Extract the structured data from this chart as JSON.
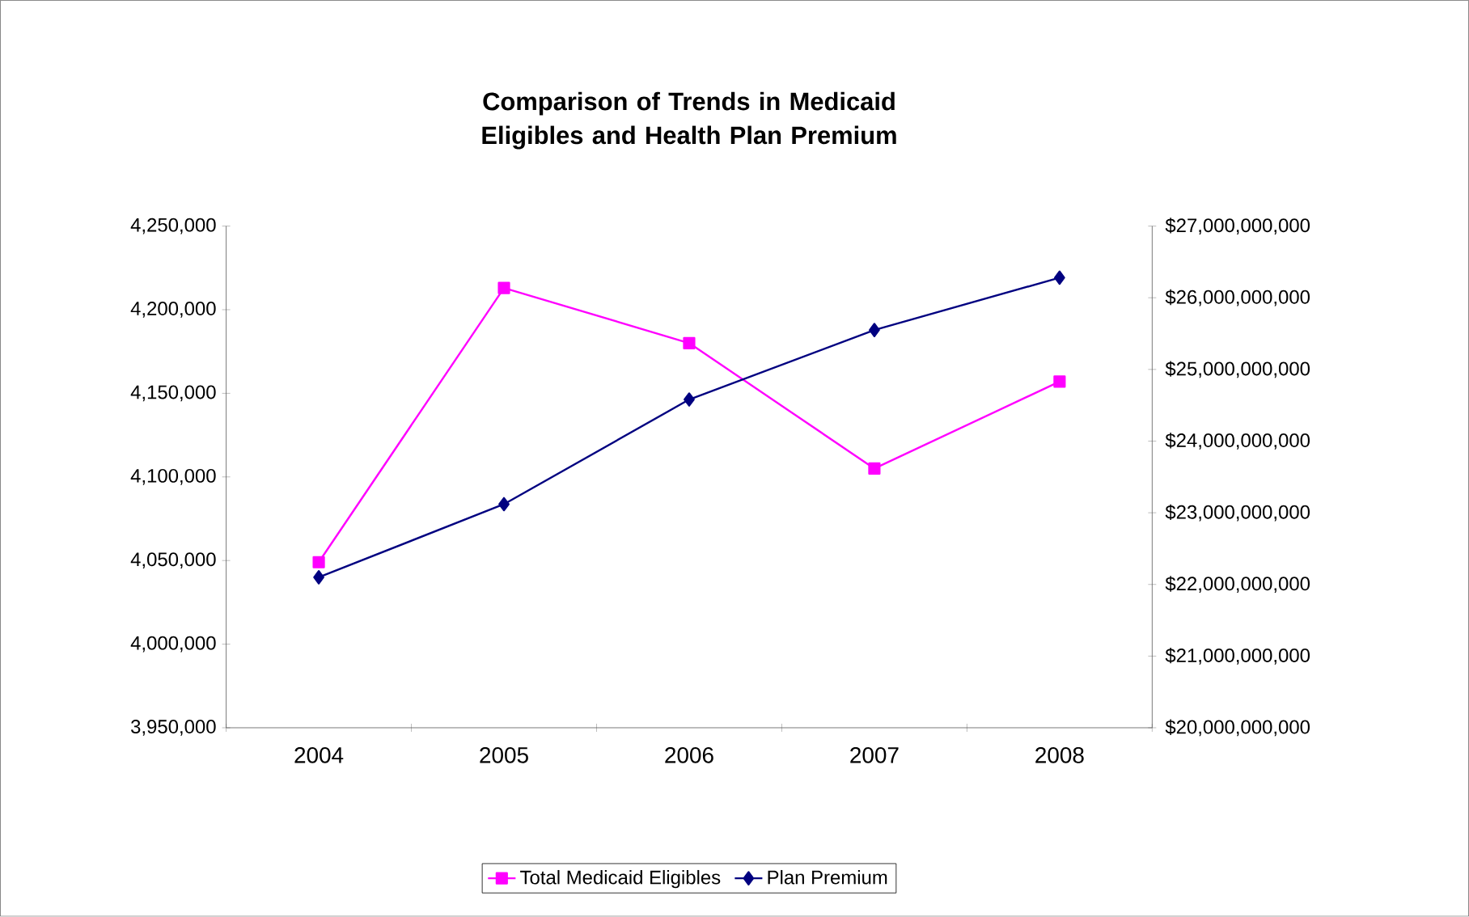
{
  "chart_data": {
    "type": "line",
    "title": "Comparison of Trends in Medicaid Eligibles and Health Plan Premium",
    "categories": [
      "2004",
      "2005",
      "2006",
      "2007",
      "2008"
    ],
    "series": [
      {
        "name": "Total Medicaid Eligibles",
        "color": "#ff00ff",
        "marker": "square",
        "values": [
          4049000,
          4213000,
          4180000,
          4105000,
          4157000
        ]
      },
      {
        "name": "Plan Premium",
        "color": "#000080",
        "marker": "diamond",
        "axis": "y2",
        "values": [
          22100000000,
          23120000000,
          24580000000,
          25550000000,
          26280000000
        ]
      }
    ],
    "ylim": [
      3950000,
      4250000
    ],
    "yticks": [
      {
        "value": 3950000,
        "label": "3,950,000"
      },
      {
        "value": 4000000,
        "label": "4,000,000"
      },
      {
        "value": 4050000,
        "label": "4,050,000"
      },
      {
        "value": 4100000,
        "label": "4,100,000"
      },
      {
        "value": 4150000,
        "label": "4,150,000"
      },
      {
        "value": 4200000,
        "label": "4,200,000"
      },
      {
        "value": 4250000,
        "label": "4,250,000"
      }
    ],
    "y2lim": [
      20000000000,
      27000000000
    ],
    "y2ticks": [
      {
        "value": 20000000000,
        "label": "$20,000,000,000"
      },
      {
        "value": 21000000000,
        "label": "$21,000,000,000"
      },
      {
        "value": 22000000000,
        "label": "$22,000,000,000"
      },
      {
        "value": 23000000000,
        "label": "$23,000,000,000"
      },
      {
        "value": 24000000000,
        "label": "$24,000,000,000"
      },
      {
        "value": 25000000000,
        "label": "$25,000,000,000"
      },
      {
        "value": 26000000000,
        "label": "$26,000,000,000"
      },
      {
        "value": 27000000000,
        "label": "$27,000,000,000"
      }
    ],
    "legend": "bottom"
  }
}
